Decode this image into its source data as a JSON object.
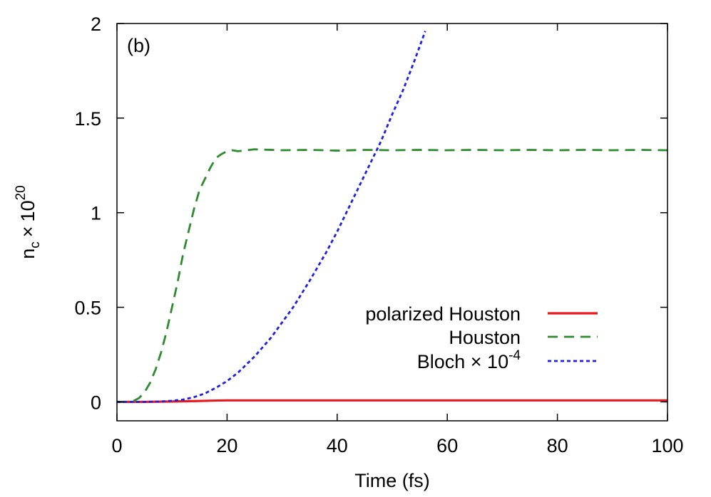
{
  "chart_data": {
    "type": "line",
    "panel_label": "(b)",
    "xlabel": "Time (fs)",
    "ylabel": {
      "base": "n",
      "subscript": "c",
      "times": "×",
      "mantissa": "10",
      "exponent": "20"
    },
    "xlim": [
      0,
      100
    ],
    "ylim": [
      -0.1,
      2
    ],
    "xticks": [
      0,
      20,
      40,
      60,
      80,
      100
    ],
    "xtick_labels": [
      "0",
      "20",
      "40",
      "60",
      "80",
      "100"
    ],
    "yticks": [
      0,
      0.5,
      1,
      1.5,
      2
    ],
    "ytick_labels": [
      "0",
      "0.5",
      "1",
      "1.5",
      "2"
    ],
    "grid": false,
    "legend_position": "lower-right",
    "series": [
      {
        "name": "polarized Houston",
        "legend": {
          "text": "polarized Houston"
        },
        "color": "#e41a1c",
        "dash": "solid",
        "x": [
          0,
          5,
          10,
          15,
          18,
          20,
          25,
          30,
          40,
          50,
          60,
          70,
          80,
          90,
          100
        ],
        "y": [
          0,
          0,
          0.002,
          0.005,
          0.007,
          0.008,
          0.008,
          0.008,
          0.008,
          0.008,
          0.008,
          0.008,
          0.008,
          0.008,
          0.008
        ]
      },
      {
        "name": "Houston",
        "legend": {
          "text": "Houston"
        },
        "color": "#2e8b2e",
        "dash": "dashed",
        "x": [
          0,
          2,
          3,
          4,
          5,
          6,
          7,
          8,
          9,
          10,
          11,
          12,
          13,
          14,
          15,
          16,
          17,
          18,
          19,
          20,
          21,
          22,
          25,
          30,
          35,
          40,
          45,
          50,
          55,
          60,
          65,
          70,
          75,
          80,
          85,
          90,
          95,
          100
        ],
        "y": [
          0,
          0,
          0.005,
          0.02,
          0.05,
          0.1,
          0.17,
          0.26,
          0.37,
          0.5,
          0.63,
          0.78,
          0.9,
          1.02,
          1.12,
          1.18,
          1.24,
          1.29,
          1.31,
          1.325,
          1.33,
          1.325,
          1.335,
          1.33,
          1.332,
          1.328,
          1.332,
          1.33,
          1.332,
          1.33,
          1.332,
          1.33,
          1.332,
          1.33,
          1.332,
          1.33,
          1.332,
          1.33
        ]
      },
      {
        "name": "Bloch × 10^-4",
        "legend": {
          "base": "Bloch ",
          "times": "×",
          "mantissa": " 10",
          "exponent": "-4"
        },
        "color": "#1f1fe6",
        "dash": "dotted",
        "x": [
          0,
          5,
          8,
          10,
          12,
          14,
          16,
          18,
          20,
          22,
          25,
          28,
          30,
          32,
          35,
          38,
          40,
          42,
          45,
          48,
          50,
          52,
          54,
          56
        ],
        "y": [
          0,
          0,
          0.002,
          0.006,
          0.012,
          0.025,
          0.045,
          0.075,
          0.11,
          0.155,
          0.24,
          0.34,
          0.42,
          0.5,
          0.64,
          0.79,
          0.9,
          1.02,
          1.2,
          1.38,
          1.52,
          1.65,
          1.8,
          1.96
        ]
      }
    ]
  }
}
